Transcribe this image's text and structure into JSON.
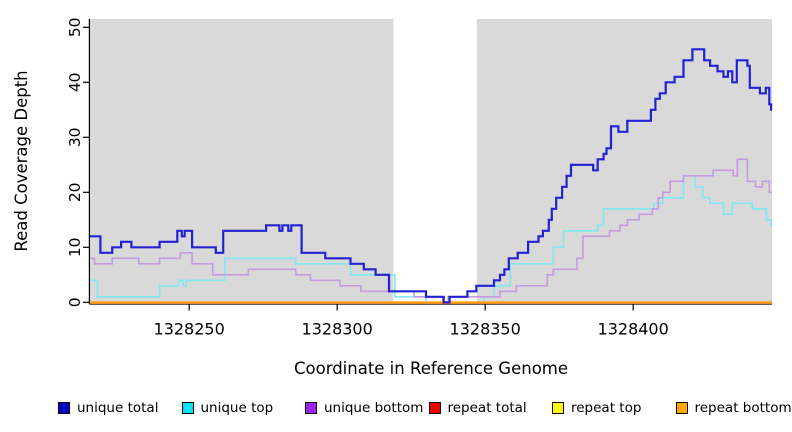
{
  "axes": {
    "x_label": "Coordinate in Reference Genome",
    "y_label": "Read Coverage Depth",
    "x_ticks": [
      "1328250",
      "1328300",
      "1328350",
      "1328400"
    ],
    "x_tick_values": [
      1328250,
      1328300,
      1328350,
      1328400
    ],
    "y_ticks": [
      "0",
      "10",
      "20",
      "30",
      "40",
      "50"
    ],
    "y_tick_values": [
      0,
      10,
      20,
      30,
      40,
      50
    ]
  },
  "legend": {
    "items": [
      {
        "label": "unique total",
        "color": "#0000cd"
      },
      {
        "label": "unique top",
        "color": "#00e5ee"
      },
      {
        "label": "unique bottom",
        "color": "#a020f0"
      },
      {
        "label": "repeat total",
        "color": "#ee0000"
      },
      {
        "label": "repeat top",
        "color": "#ffff00"
      },
      {
        "label": "repeat bottom",
        "color": "#ffa500"
      }
    ]
  },
  "chart_data": {
    "type": "line",
    "step": true,
    "title": "",
    "xlabel": "Coordinate in Reference Genome",
    "ylabel": "Read Coverage Depth",
    "xlim": [
      1328216.5,
      1328446.9
    ],
    "ylim": [
      0,
      50
    ],
    "grid": false,
    "plot_background": "#d9d9d9",
    "gap_region": {
      "from": 1328319,
      "to": 1328347.2,
      "color": "#ffffff"
    },
    "legend_position": "bottom",
    "series": [
      {
        "name": "unique total",
        "legend_color": "#0000cd",
        "line_color": "#2222d4",
        "line_width": 2.2,
        "points": [
          [
            1328216.5,
            12
          ],
          [
            1328220,
            9
          ],
          [
            1328224,
            10
          ],
          [
            1328227,
            11
          ],
          [
            1328230.5,
            10
          ],
          [
            1328240,
            11
          ],
          [
            1328246,
            13
          ],
          [
            1328247.5,
            12
          ],
          [
            1328248.5,
            13
          ],
          [
            1328251,
            10
          ],
          [
            1328259,
            9
          ],
          [
            1328261.5,
            13
          ],
          [
            1328276,
            14
          ],
          [
            1328280.5,
            13
          ],
          [
            1328281.5,
            14
          ],
          [
            1328283.5,
            13
          ],
          [
            1328284.5,
            14
          ],
          [
            1328288,
            9
          ],
          [
            1328296,
            8
          ],
          [
            1328304.5,
            7
          ],
          [
            1328309,
            6
          ],
          [
            1328313,
            5
          ],
          [
            1328317.5,
            2
          ],
          [
            1328330,
            1
          ],
          [
            1328336,
            0
          ],
          [
            1328338,
            1
          ],
          [
            1328344,
            2
          ],
          [
            1328347,
            3
          ],
          [
            1328353,
            4
          ],
          [
            1328355,
            5
          ],
          [
            1328356.5,
            6
          ],
          [
            1328358,
            8
          ],
          [
            1328361,
            9
          ],
          [
            1328364.5,
            11
          ],
          [
            1328368,
            12
          ],
          [
            1328369.5,
            13
          ],
          [
            1328371.5,
            15
          ],
          [
            1328372.5,
            17
          ],
          [
            1328374,
            19
          ],
          [
            1328376,
            21
          ],
          [
            1328377.5,
            23
          ],
          [
            1328379,
            25
          ],
          [
            1328386.5,
            24
          ],
          [
            1328388,
            26
          ],
          [
            1328390,
            27
          ],
          [
            1328391,
            28
          ],
          [
            1328392.5,
            32
          ],
          [
            1328395,
            31
          ],
          [
            1328398,
            33
          ],
          [
            1328406,
            35
          ],
          [
            1328407.5,
            37
          ],
          [
            1328409,
            38
          ],
          [
            1328411,
            40
          ],
          [
            1328414,
            41
          ],
          [
            1328417,
            44
          ],
          [
            1328420,
            46
          ],
          [
            1328424,
            44
          ],
          [
            1328426,
            43
          ],
          [
            1328428.5,
            42
          ],
          [
            1328430.5,
            41
          ],
          [
            1328432,
            42
          ],
          [
            1328433.5,
            40
          ],
          [
            1328435,
            44
          ],
          [
            1328438.6,
            43
          ],
          [
            1328439.4,
            39
          ],
          [
            1328442.8,
            38
          ],
          [
            1328444.8,
            39
          ],
          [
            1328446,
            36
          ],
          [
            1328446.6,
            35
          ]
        ]
      },
      {
        "name": "unique top",
        "legend_color": "#00e5ee",
        "line_color": "#7fe8f0",
        "line_width": 1.6,
        "points": [
          [
            1328216.5,
            4
          ],
          [
            1328219,
            1
          ],
          [
            1328240,
            3
          ],
          [
            1328246.5,
            4
          ],
          [
            1328248,
            3
          ],
          [
            1328249,
            4
          ],
          [
            1328262,
            8
          ],
          [
            1328286,
            7
          ],
          [
            1328304.5,
            5
          ],
          [
            1328319.5,
            1
          ],
          [
            1328330,
            0
          ],
          [
            1328349.5,
            1
          ],
          [
            1328353,
            3
          ],
          [
            1328358.5,
            7
          ],
          [
            1328373,
            10
          ],
          [
            1328376.5,
            13
          ],
          [
            1328388,
            14
          ],
          [
            1328390,
            17
          ],
          [
            1328407,
            18
          ],
          [
            1328410,
            19
          ],
          [
            1328417,
            23
          ],
          [
            1328421,
            21
          ],
          [
            1328423.5,
            19
          ],
          [
            1328426,
            18
          ],
          [
            1328430.5,
            16
          ],
          [
            1328433.5,
            18
          ],
          [
            1328440.2,
            17
          ],
          [
            1328445,
            15
          ],
          [
            1328446.5,
            14
          ]
        ]
      },
      {
        "name": "unique bottom",
        "legend_color": "#a020f0",
        "line_color": "#c59ae0",
        "line_width": 1.6,
        "points": [
          [
            1328216.5,
            8
          ],
          [
            1328218,
            7
          ],
          [
            1328224,
            8
          ],
          [
            1328233,
            7
          ],
          [
            1328240,
            8
          ],
          [
            1328247,
            9
          ],
          [
            1328251,
            7
          ],
          [
            1328258,
            5
          ],
          [
            1328270,
            6
          ],
          [
            1328286,
            5
          ],
          [
            1328291,
            4
          ],
          [
            1328301,
            3
          ],
          [
            1328308,
            2
          ],
          [
            1328326,
            1
          ],
          [
            1328335.7,
            0
          ],
          [
            1328337.5,
            1
          ],
          [
            1328355,
            2
          ],
          [
            1328360.5,
            3
          ],
          [
            1328371,
            5
          ],
          [
            1328373,
            6
          ],
          [
            1328381,
            8
          ],
          [
            1328383,
            12
          ],
          [
            1328392,
            13
          ],
          [
            1328395.5,
            14
          ],
          [
            1328398,
            15
          ],
          [
            1328402,
            16
          ],
          [
            1328406.5,
            17
          ],
          [
            1328408.5,
            19
          ],
          [
            1328410,
            20
          ],
          [
            1328412.5,
            22
          ],
          [
            1328417,
            23
          ],
          [
            1328427,
            24
          ],
          [
            1328433.8,
            23
          ],
          [
            1328435.2,
            26
          ],
          [
            1328438.6,
            22
          ],
          [
            1328441.3,
            21
          ],
          [
            1328443.7,
            22
          ],
          [
            1328446,
            20
          ]
        ]
      },
      {
        "name": "repeat total",
        "legend_color": "#ee0000",
        "line_color": "#d04545",
        "line_width": 1.5,
        "points": [
          [
            1328216.5,
            0
          ]
        ]
      },
      {
        "name": "repeat top",
        "legend_color": "#ffff00",
        "line_color": "#ffff00",
        "line_width": 1.5,
        "points": [
          [
            1328216.5,
            0
          ]
        ]
      },
      {
        "name": "repeat bottom",
        "legend_color": "#ffa500",
        "line_color": "#ff9d00",
        "line_width": 1.8,
        "points": [
          [
            1328216.5,
            0
          ]
        ]
      }
    ]
  }
}
